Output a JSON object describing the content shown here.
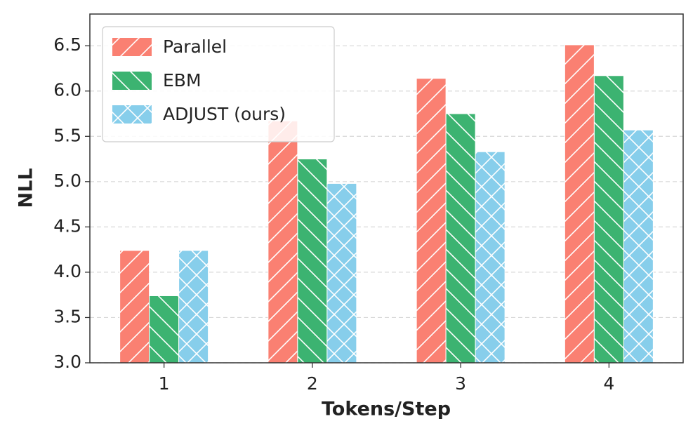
{
  "chart_data": {
    "type": "bar",
    "x_label": "Tokens/Step",
    "y_label": "NLL",
    "categories": [
      "1",
      "2",
      "3",
      "4"
    ],
    "series": [
      {
        "name": "Parallel",
        "color": "#fa8072",
        "hatch": "/",
        "values": [
          4.24,
          5.67,
          6.14,
          6.51
        ]
      },
      {
        "name": "EBM",
        "color": "#3cb371",
        "hatch": "\\",
        "values": [
          3.74,
          5.25,
          5.75,
          6.17
        ]
      },
      {
        "name": "ADJUST (ours)",
        "color": "#87ceeb",
        "hatch": "x",
        "values": [
          4.24,
          4.98,
          5.33,
          5.57
        ]
      }
    ],
    "ylim": [
      3.0,
      6.85
    ],
    "yticks": [
      {
        "value": 3,
        "label": "3.0"
      },
      3.5,
      {
        "value": 4,
        "label": "4.0"
      },
      4.5,
      {
        "value": 5,
        "label": "5.0"
      },
      5.5,
      {
        "value": 6,
        "label": "6.0"
      },
      6.5
    ],
    "grid": true,
    "legend": "upper left"
  }
}
